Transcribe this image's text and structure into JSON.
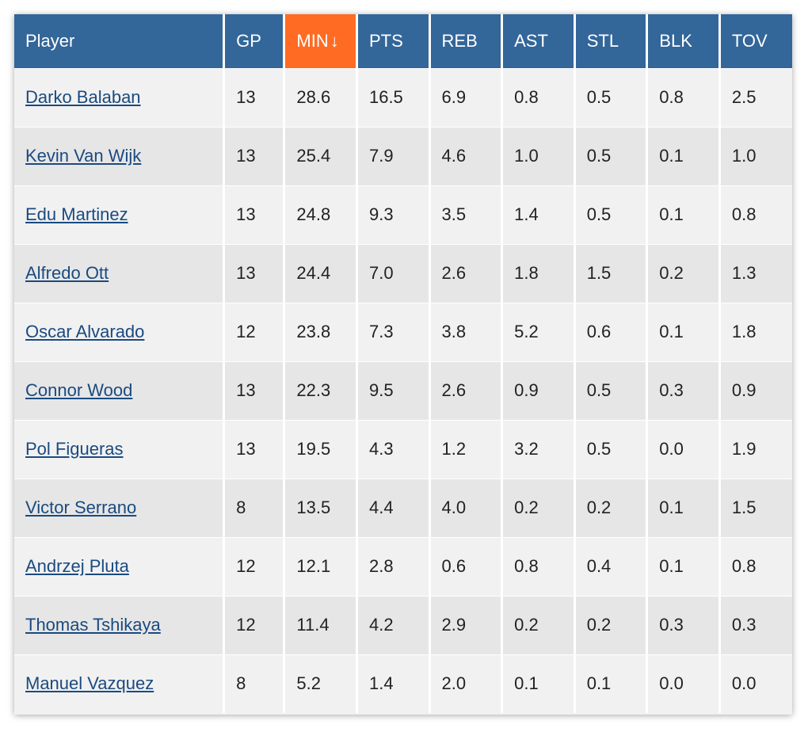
{
  "table": {
    "columns": [
      "Player",
      "GP",
      "MIN",
      "PTS",
      "REB",
      "AST",
      "STL",
      "BLK",
      "TOV"
    ],
    "sort": {
      "column": "MIN",
      "direction": "desc",
      "arrow": "↓"
    },
    "rows": [
      {
        "player": "Darko Balaban",
        "gp": "13",
        "min": "28.6",
        "pts": "16.5",
        "reb": "6.9",
        "ast": "0.8",
        "stl": "0.5",
        "blk": "0.8",
        "tov": "2.5"
      },
      {
        "player": "Kevin Van Wijk",
        "gp": "13",
        "min": "25.4",
        "pts": "7.9",
        "reb": "4.6",
        "ast": "1.0",
        "stl": "0.5",
        "blk": "0.1",
        "tov": "1.0"
      },
      {
        "player": "Edu Martinez",
        "gp": "13",
        "min": "24.8",
        "pts": "9.3",
        "reb": "3.5",
        "ast": "1.4",
        "stl": "0.5",
        "blk": "0.1",
        "tov": "0.8"
      },
      {
        "player": "Alfredo Ott",
        "gp": "13",
        "min": "24.4",
        "pts": "7.0",
        "reb": "2.6",
        "ast": "1.8",
        "stl": "1.5",
        "blk": "0.2",
        "tov": "1.3"
      },
      {
        "player": "Oscar Alvarado",
        "gp": "12",
        "min": "23.8",
        "pts": "7.3",
        "reb": "3.8",
        "ast": "5.2",
        "stl": "0.6",
        "blk": "0.1",
        "tov": "1.8"
      },
      {
        "player": "Connor Wood",
        "gp": "13",
        "min": "22.3",
        "pts": "9.5",
        "reb": "2.6",
        "ast": "0.9",
        "stl": "0.5",
        "blk": "0.3",
        "tov": "0.9"
      },
      {
        "player": "Pol Figueras",
        "gp": "13",
        "min": "19.5",
        "pts": "4.3",
        "reb": "1.2",
        "ast": "3.2",
        "stl": "0.5",
        "blk": "0.0",
        "tov": "1.9"
      },
      {
        "player": "Victor Serrano",
        "gp": "8",
        "min": "13.5",
        "pts": "4.4",
        "reb": "4.0",
        "ast": "0.2",
        "stl": "0.2",
        "blk": "0.1",
        "tov": "1.5"
      },
      {
        "player": "Andrzej Pluta",
        "gp": "12",
        "min": "12.1",
        "pts": "2.8",
        "reb": "0.6",
        "ast": "0.8",
        "stl": "0.4",
        "blk": "0.1",
        "tov": "0.8"
      },
      {
        "player": "Thomas Tshikaya",
        "gp": "12",
        "min": "11.4",
        "pts": "4.2",
        "reb": "2.9",
        "ast": "0.2",
        "stl": "0.2",
        "blk": "0.3",
        "tov": "0.3"
      },
      {
        "player": "Manuel Vazquez",
        "gp": "8",
        "min": "5.2",
        "pts": "1.4",
        "reb": "2.0",
        "ast": "0.1",
        "stl": "0.1",
        "blk": "0.0",
        "tov": "0.0"
      }
    ]
  },
  "colors": {
    "header_bg": "#336699",
    "sorted_header_bg": "#ff6b22",
    "focus_ring": "#66a3ff",
    "link": "#1a4a80",
    "row_odd": "#f1f1f1",
    "row_even": "#e6e6e6"
  },
  "icons": {
    "sort": "sort-descending-arrow-icon"
  }
}
